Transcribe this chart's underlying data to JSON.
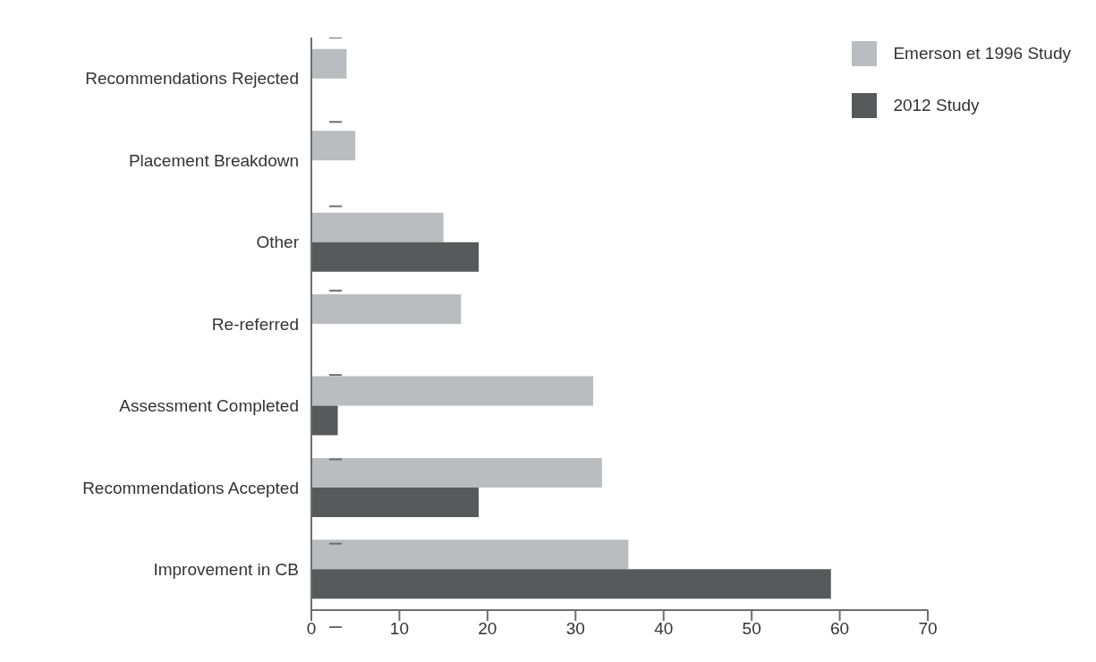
{
  "chart_data": {
    "type": "bar",
    "orientation": "horizontal",
    "categories": [
      "Recommendations Rejected",
      "Placement Breakdown",
      "Other",
      "Re-referred",
      "Assessment Completed",
      "Recommendations Accepted",
      "Improvement in CB"
    ],
    "series": [
      {
        "name": "Emerson et 1996 Study",
        "color": "#bbbcc0",
        "values": [
          4,
          5,
          15,
          17,
          32,
          33,
          36
        ]
      },
      {
        "name": "2012 Study",
        "color": "#58595b",
        "values": [
          null,
          null,
          19,
          null,
          3,
          19,
          59
        ]
      }
    ],
    "xlim": [
      0,
      70
    ],
    "xticks": [
      0,
      10,
      20,
      30,
      40,
      50,
      60,
      70
    ],
    "grid": false,
    "legend": "top right"
  }
}
